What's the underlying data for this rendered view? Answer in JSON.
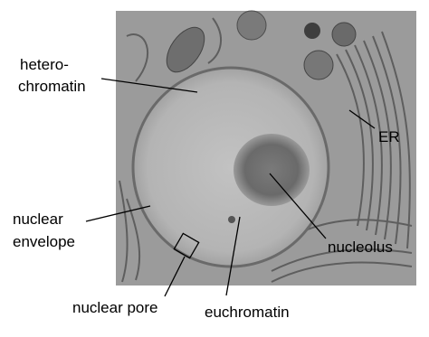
{
  "labels": [
    {
      "lines": [
        "hetero-",
        "chromatin"
      ]
    },
    {
      "lines": [
        "ER"
      ]
    },
    {
      "lines": [
        "nuclear",
        "envelope"
      ]
    },
    {
      "lines": [
        "nucleolus"
      ]
    },
    {
      "lines": [
        "nuclear pore"
      ]
    },
    {
      "lines": [
        "euchromatin"
      ]
    }
  ]
}
